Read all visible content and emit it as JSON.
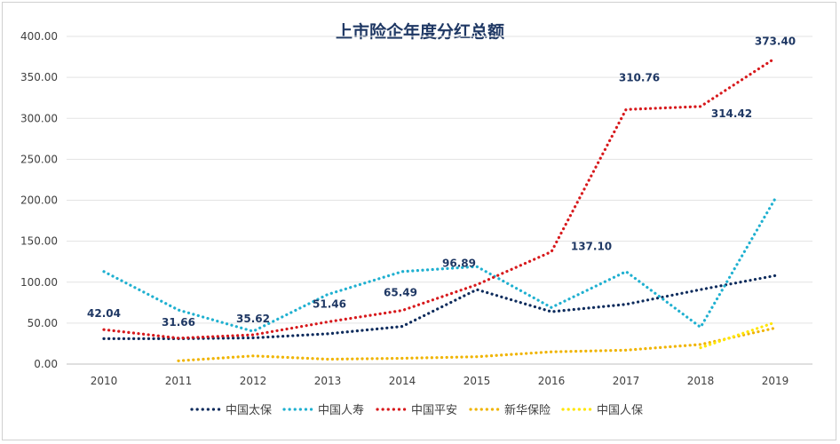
{
  "chart_data": {
    "type": "line",
    "title": "上市险企年度分红总额",
    "xlabel": "",
    "ylabel": "",
    "ylim": [
      0,
      400
    ],
    "yticks": [
      "0.00",
      "50.00",
      "100.00",
      "150.00",
      "200.00",
      "250.00",
      "300.00",
      "350.00",
      "400.00"
    ],
    "categories": [
      "2010",
      "2011",
      "2012",
      "2013",
      "2014",
      "2015",
      "2016",
      "2017",
      "2018",
      "2019"
    ],
    "legend_position": "bottom",
    "grid": true,
    "series": [
      {
        "name": "中国太保",
        "color": "#0d2b5c",
        "values": [
          31,
          31,
          32,
          37,
          46,
          91,
          64,
          73,
          91,
          108
        ]
      },
      {
        "name": "中国人寿",
        "color": "#1fb0d0",
        "values": [
          113,
          66,
          40,
          85,
          113,
          119,
          69,
          113,
          45,
          202
        ]
      },
      {
        "name": "中国平安",
        "color": "#d7191c",
        "values": [
          42.04,
          31.66,
          35.62,
          51.46,
          65.49,
          96.89,
          137.1,
          310.76,
          314.42,
          373.4
        ],
        "labels": [
          "42.04",
          "31.66",
          "35.62",
          "51.46",
          "65.49",
          "96.89",
          "137.10",
          "310.76",
          "314.42",
          "373.40"
        ]
      },
      {
        "name": "新华保险",
        "color": "#f0b400",
        "values": [
          null,
          4,
          10,
          6,
          7,
          9,
          15,
          17,
          24,
          44
        ]
      },
      {
        "name": "中国人保",
        "color": "#ffe600",
        "values": [
          null,
          null,
          null,
          null,
          null,
          null,
          null,
          null,
          20,
          51
        ]
      }
    ]
  }
}
